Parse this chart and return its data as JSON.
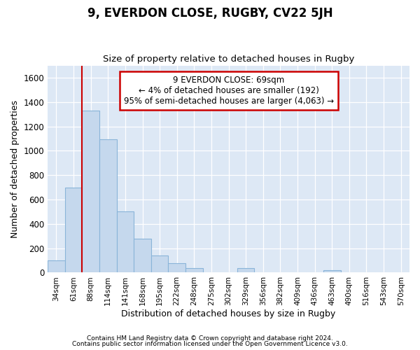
{
  "title": "9, EVERDON CLOSE, RUGBY, CV22 5JH",
  "subtitle": "Size of property relative to detached houses in Rugby",
  "xlabel": "Distribution of detached houses by size in Rugby",
  "ylabel": "Number of detached properties",
  "categories": [
    "34sqm",
    "61sqm",
    "88sqm",
    "114sqm",
    "141sqm",
    "168sqm",
    "195sqm",
    "222sqm",
    "248sqm",
    "275sqm",
    "302sqm",
    "329sqm",
    "356sqm",
    "382sqm",
    "409sqm",
    "436sqm",
    "463sqm",
    "490sqm",
    "516sqm",
    "543sqm",
    "570sqm"
  ],
  "values": [
    100,
    700,
    1330,
    1095,
    500,
    280,
    140,
    75,
    35,
    0,
    0,
    35,
    0,
    0,
    0,
    0,
    20,
    0,
    0,
    0,
    0
  ],
  "bar_color": "#c5d8ed",
  "bar_edge_color": "#8ab4d9",
  "vline_x": 1.5,
  "vline_color": "#cc0000",
  "ylim": [
    0,
    1700
  ],
  "yticks": [
    0,
    200,
    400,
    600,
    800,
    1000,
    1200,
    1400,
    1600
  ],
  "annotation_title": "9 EVERDON CLOSE: 69sqm",
  "annotation_line1": "← 4% of detached houses are smaller (192)",
  "annotation_line2": "95% of semi-detached houses are larger (4,063) →",
  "annotation_box_color": "#ffffff",
  "annotation_box_edge": "#cc0000",
  "footer1": "Contains HM Land Registry data © Crown copyright and database right 2024.",
  "footer2": "Contains public sector information licensed under the Open Government Licence v3.0.",
  "bg_color": "#ffffff",
  "plot_bg_color": "#dde8f5"
}
